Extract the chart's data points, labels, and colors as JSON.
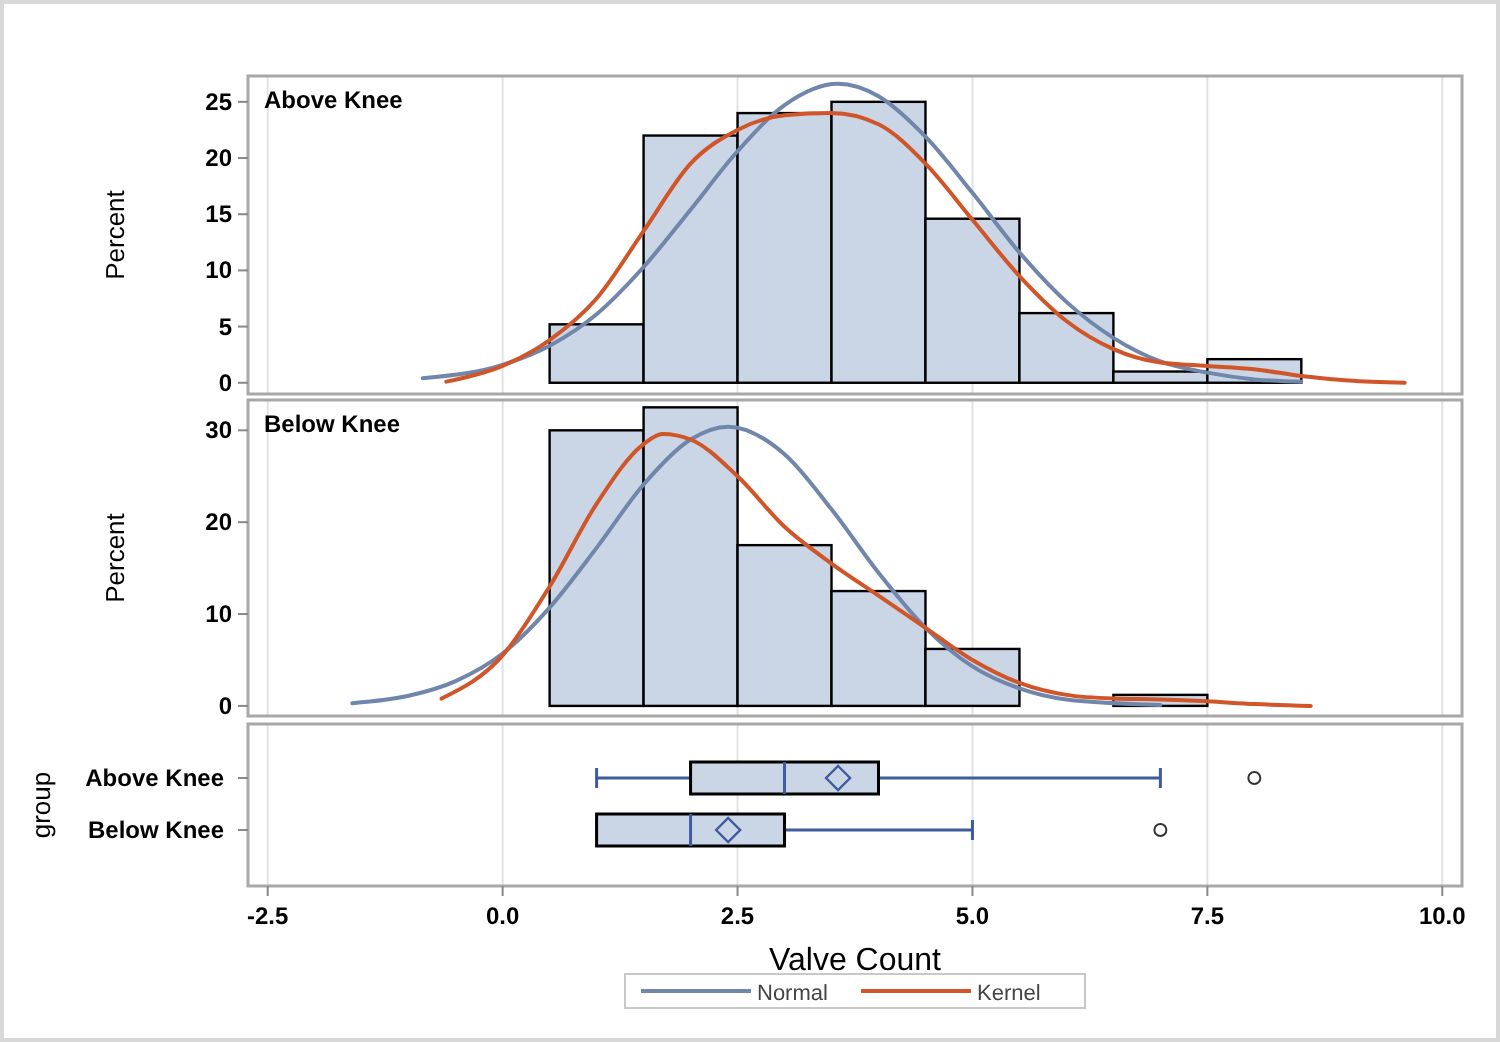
{
  "chart_data": [
    {
      "type": "histogram",
      "title": "Above Knee",
      "ylabel": "Percent",
      "bins": [
        0.5,
        1.5,
        2.5,
        3.5,
        4.5,
        5.5,
        6.5,
        7.5,
        8.5
      ],
      "values": [
        5.2,
        22,
        24,
        25,
        14.6,
        6.2,
        1.0,
        2.1
      ],
      "color": "#cad5e6",
      "series": [
        {
          "name": "Normal",
          "type": "line",
          "color": "#7086ab",
          "x": [
            -0.85,
            0,
            0.5,
            1,
            1.5,
            2,
            2.5,
            3,
            3.57,
            4,
            4.5,
            5,
            5.5,
            6,
            6.5,
            7,
            7.5,
            8,
            8.5
          ],
          "values": [
            0.4,
            1.6,
            3.3,
            6.1,
            10.3,
            15.4,
            20.6,
            24.7,
            26.6,
            25.5,
            21.9,
            16.9,
            11.6,
            7.2,
            4.0,
            1.9,
            0.9,
            0.3,
            0.1
          ]
        },
        {
          "name": "Kernel",
          "type": "line",
          "color": "#d0562a",
          "x": [
            -0.6,
            0,
            0.5,
            1,
            1.5,
            2,
            2.5,
            3,
            3.5,
            4,
            4.5,
            5,
            5.5,
            6,
            6.5,
            7,
            7.5,
            8,
            8.5,
            9,
            9.6
          ],
          "values": [
            0.1,
            1.5,
            3.8,
            7.5,
            13.5,
            19.5,
            22.5,
            23.8,
            24,
            23,
            19.5,
            14.5,
            9.5,
            5.5,
            3,
            1.8,
            1.5,
            1.2,
            0.6,
            0.2,
            0
          ]
        }
      ],
      "xlim": [
        -2.71,
        10.21
      ],
      "xticks": [
        -2.5,
        0,
        2.5,
        5,
        7.5,
        10
      ],
      "ylim": [
        -1,
        27.3
      ],
      "yticks": [
        0,
        5,
        10,
        15,
        20,
        25
      ],
      "grid": "x",
      "tick_labels": "y",
      "legend": "bottom"
    },
    {
      "type": "histogram",
      "title": "Below Knee",
      "ylabel": "Percent",
      "bins": [
        0.5,
        1.5,
        2.5,
        3.5,
        4.5,
        5.5,
        6.5,
        7.5
      ],
      "values": [
        30,
        32.5,
        17.5,
        12.5,
        6.2,
        0,
        1.2
      ],
      "color": "#cad5e6",
      "series": [
        {
          "name": "Normal",
          "type": "line",
          "color": "#7086ab",
          "x": [
            -1.6,
            -1,
            -0.5,
            0,
            0.5,
            1,
            1.5,
            2,
            2.4,
            3,
            3.5,
            4,
            4.5,
            5,
            5.5,
            6,
            7
          ],
          "values": [
            0.3,
            1.1,
            2.7,
            5.7,
            10.7,
            17.2,
            24.1,
            29.0,
            30.4,
            27.4,
            21.4,
            14.5,
            8.5,
            4.3,
            1.9,
            0.7,
            0.1
          ]
        },
        {
          "name": "Kernel",
          "type": "line",
          "color": "#d0562a",
          "x": [
            -0.65,
            0,
            0.5,
            1,
            1.5,
            1.7,
            2,
            2.5,
            3,
            3.5,
            4,
            4.5,
            5,
            5.5,
            6,
            6.5,
            7,
            7.5,
            8,
            8.6
          ],
          "values": [
            0.8,
            5.5,
            13,
            22,
            28.5,
            29.6,
            29,
            25,
            19.5,
            15.5,
            12,
            8.5,
            5,
            2.5,
            1.2,
            0.8,
            0.7,
            0.5,
            0.2,
            0
          ]
        }
      ],
      "xlim": [
        -2.71,
        10.21
      ],
      "xticks": [
        -2.5,
        0,
        2.5,
        5,
        7.5,
        10
      ],
      "ylim": [
        -1.1,
        33.3
      ],
      "yticks": [
        0,
        10,
        20,
        30
      ],
      "grid": "x",
      "tick_labels": "y"
    },
    {
      "type": "box",
      "orientation": "horizontal",
      "xlabel": "Valve Count",
      "ylabel": "group",
      "categories": [
        "Above Knee",
        "Below Knee"
      ],
      "color": "#cad5e6",
      "boxes": [
        {
          "low": 1,
          "q1": 2,
          "median": 3,
          "q3": 4,
          "high": 7,
          "mean": 3.57,
          "outliers": [
            8
          ]
        },
        {
          "low": 1,
          "q1": 1,
          "median": 2,
          "q3": 3,
          "high": 5,
          "mean": 2.4,
          "outliers": [
            7
          ]
        }
      ],
      "xlim": [
        -2.71,
        10.21
      ],
      "xticks": [
        -2.5,
        {
          "value": 0,
          "label": "0.0"
        },
        2.5,
        {
          "value": 5,
          "label": "5.0"
        },
        7.5,
        {
          "value": 10,
          "label": "10.0"
        }
      ],
      "grid": "x"
    }
  ]
}
